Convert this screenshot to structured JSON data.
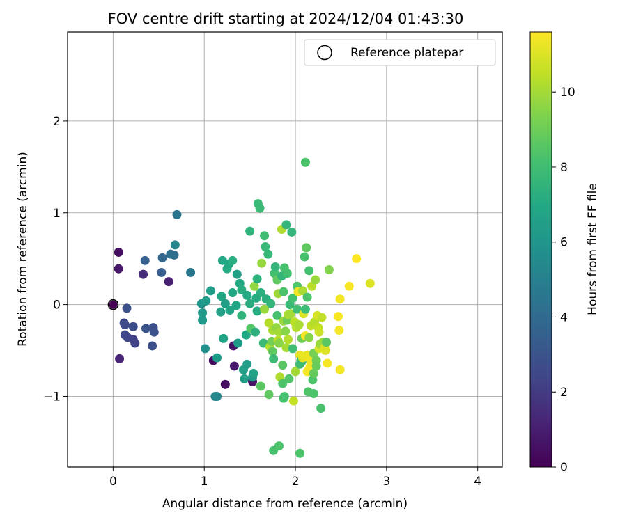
{
  "chart_data": {
    "type": "scatter",
    "title": "FOV centre drift starting at 2024/12/04 01:43:30",
    "xlabel": "Angular distance from reference (arcmin)",
    "ylabel": "Rotation from reference (arcmin)",
    "xlim": [
      -0.5,
      4.27
    ],
    "ylim": [
      -1.77,
      2.97
    ],
    "xticks": [
      "0",
      "1",
      "2",
      "3",
      "4"
    ],
    "yticks": [
      "−1",
      "0",
      "1",
      "2"
    ],
    "grid": true,
    "legend": {
      "label": "Reference platepar",
      "position": "top-right"
    },
    "reference_point": {
      "x": 0,
      "y": 0
    },
    "colorbar": {
      "label": "Hours from first FF file",
      "range": [
        0,
        11.6
      ],
      "ticks": [
        "0",
        "2",
        "4",
        "6",
        "8",
        "10"
      ],
      "colormap": "viridis"
    },
    "points": [
      {
        "x": 0.06,
        "y": 0.57,
        "h": 0.4
      },
      {
        "x": 0.06,
        "y": 0.39,
        "h": 0.7
      },
      {
        "x": 0.07,
        "y": -0.59,
        "h": 1.2
      },
      {
        "x": 0.12,
        "y": -0.2,
        "h": 2.6
      },
      {
        "x": 0.13,
        "y": -0.22,
        "h": 2.6
      },
      {
        "x": 0.15,
        "y": -0.04,
        "h": 2.9
      },
      {
        "x": 0.13,
        "y": -0.33,
        "h": 2.5
      },
      {
        "x": 0.16,
        "y": -0.36,
        "h": 2.4
      },
      {
        "x": 0.22,
        "y": -0.38,
        "h": 2.3
      },
      {
        "x": 0.22,
        "y": -0.24,
        "h": 2.7
      },
      {
        "x": 0.24,
        "y": -0.42,
        "h": 2.3
      },
      {
        "x": 0.33,
        "y": 0.33,
        "h": 1.5
      },
      {
        "x": 0.35,
        "y": 0.48,
        "h": 3.5
      },
      {
        "x": 0.36,
        "y": -0.26,
        "h": 3.0
      },
      {
        "x": 0.44,
        "y": -0.25,
        "h": 2.8
      },
      {
        "x": 0.45,
        "y": -0.3,
        "h": 2.9
      },
      {
        "x": 0.43,
        "y": -0.45,
        "h": 2.8
      },
      {
        "x": 0.53,
        "y": 0.35,
        "h": 3.4
      },
      {
        "x": 0.54,
        "y": 0.51,
        "h": 3.8
      },
      {
        "x": 0.61,
        "y": 0.25,
        "h": 1.0
      },
      {
        "x": 0.63,
        "y": 0.55,
        "h": 4.2
      },
      {
        "x": 0.67,
        "y": 0.54,
        "h": 4.2
      },
      {
        "x": 0.68,
        "y": 0.65,
        "h": 5.3
      },
      {
        "x": 0.7,
        "y": 0.98,
        "h": 4.5
      },
      {
        "x": 0.85,
        "y": 0.35,
        "h": 4.6
      },
      {
        "x": 0.97,
        "y": 0.01,
        "h": 6.0
      },
      {
        "x": 0.98,
        "y": -0.09,
        "h": 6.2
      },
      {
        "x": 0.98,
        "y": -0.17,
        "h": 6.2
      },
      {
        "x": 1.02,
        "y": 0.04,
        "h": 6.3
      },
      {
        "x": 1.01,
        "y": -0.48,
        "h": 5.8
      },
      {
        "x": 1.07,
        "y": 0.15,
        "h": 6.4
      },
      {
        "x": 1.1,
        "y": -0.61,
        "h": 0.4
      },
      {
        "x": 1.14,
        "y": -0.58,
        "h": 6.2
      },
      {
        "x": 1.12,
        "y": -1.0,
        "h": 5.3
      },
      {
        "x": 1.14,
        "y": -1.0,
        "h": 5.3
      },
      {
        "x": 1.18,
        "y": -0.08,
        "h": 6.6
      },
      {
        "x": 1.2,
        "y": 0.48,
        "h": 6.9
      },
      {
        "x": 1.19,
        "y": 0.09,
        "h": 6.9
      },
      {
        "x": 1.21,
        "y": -0.37,
        "h": 6.7
      },
      {
        "x": 1.23,
        "y": -0.87,
        "h": 0.5
      },
      {
        "x": 1.23,
        "y": 0.01,
        "h": 6.5
      },
      {
        "x": 1.25,
        "y": 0.39,
        "h": 7.1
      },
      {
        "x": 1.27,
        "y": 0.44,
        "h": 7.0
      },
      {
        "x": 1.28,
        "y": -0.06,
        "h": 6.8
      },
      {
        "x": 1.31,
        "y": 0.13,
        "h": 6.9
      },
      {
        "x": 1.31,
        "y": 0.48,
        "h": 7.2
      },
      {
        "x": 1.32,
        "y": -0.45,
        "h": 0.6
      },
      {
        "x": 1.33,
        "y": -0.67,
        "h": 0.8
      },
      {
        "x": 1.35,
        "y": -0.01,
        "h": 6.8
      },
      {
        "x": 1.36,
        "y": 0.33,
        "h": 6.6
      },
      {
        "x": 1.37,
        "y": -0.42,
        "h": 6.3
      },
      {
        "x": 1.39,
        "y": 0.23,
        "h": 7.0
      },
      {
        "x": 1.41,
        "y": -0.12,
        "h": 7.5
      },
      {
        "x": 1.41,
        "y": 0.16,
        "h": 7.2
      },
      {
        "x": 1.43,
        "y": -0.71,
        "h": 6.5
      },
      {
        "x": 1.44,
        "y": -0.81,
        "h": 6.5
      },
      {
        "x": 1.46,
        "y": -0.33,
        "h": 6.9
      },
      {
        "x": 1.47,
        "y": -0.65,
        "h": 6.4
      },
      {
        "x": 1.47,
        "y": 0.1,
        "h": 7.0
      },
      {
        "x": 1.5,
        "y": 0.8,
        "h": 7.5
      },
      {
        "x": 1.5,
        "y": 0.01,
        "h": 7.2
      },
      {
        "x": 1.51,
        "y": -0.26,
        "h": 8.5
      },
      {
        "x": 1.53,
        "y": -0.84,
        "h": 0.6
      },
      {
        "x": 1.53,
        "y": -0.79,
        "h": 6.1
      },
      {
        "x": 1.54,
        "y": -0.75,
        "h": 6.6
      },
      {
        "x": 1.55,
        "y": 0.2,
        "h": 9.7
      },
      {
        "x": 1.56,
        "y": -0.3,
        "h": 7.3
      },
      {
        "x": 1.57,
        "y": 0.07,
        "h": 7.1
      },
      {
        "x": 1.58,
        "y": 0.28,
        "h": 7.4
      },
      {
        "x": 1.58,
        "y": -0.07,
        "h": 7.2
      },
      {
        "x": 1.59,
        "y": 1.1,
        "h": 7.8
      },
      {
        "x": 1.61,
        "y": 1.05,
        "h": 7.8
      },
      {
        "x": 1.62,
        "y": 0.13,
        "h": 7.3
      },
      {
        "x": 1.62,
        "y": -0.89,
        "h": 8.6
      },
      {
        "x": 1.63,
        "y": 0.45,
        "h": 9.8
      },
      {
        "x": 1.65,
        "y": -0.42,
        "h": 7.8
      },
      {
        "x": 1.66,
        "y": 0.75,
        "h": 8.0
      },
      {
        "x": 1.66,
        "y": -0.05,
        "h": 9.8
      },
      {
        "x": 1.67,
        "y": 0.63,
        "h": 7.8
      },
      {
        "x": 1.68,
        "y": 0.06,
        "h": 7.3
      },
      {
        "x": 1.7,
        "y": 0.55,
        "h": 7.7
      },
      {
        "x": 1.71,
        "y": -0.2,
        "h": 10.3
      },
      {
        "x": 1.71,
        "y": -0.98,
        "h": 8.7
      },
      {
        "x": 1.72,
        "y": -0.46,
        "h": 10.2
      },
      {
        "x": 1.73,
        "y": 0.01,
        "h": 7.6
      },
      {
        "x": 1.74,
        "y": -0.4,
        "h": 9.1
      },
      {
        "x": 1.75,
        "y": -0.51,
        "h": 8.7
      },
      {
        "x": 1.75,
        "y": -0.28,
        "h": 10.1
      },
      {
        "x": 1.76,
        "y": -0.59,
        "h": 7.9
      },
      {
        "x": 1.76,
        "y": -1.59,
        "h": 8.2
      },
      {
        "x": 1.77,
        "y": 0.34,
        "h": 8.1
      },
      {
        "x": 1.78,
        "y": 0.41,
        "h": 7.6
      },
      {
        "x": 1.79,
        "y": -0.25,
        "h": 9.7
      },
      {
        "x": 1.8,
        "y": -0.12,
        "h": 8.2
      },
      {
        "x": 1.8,
        "y": 0.27,
        "h": 8.7
      },
      {
        "x": 1.81,
        "y": -0.39,
        "h": 10.4
      },
      {
        "x": 1.81,
        "y": 0.12,
        "h": 9.9
      },
      {
        "x": 1.82,
        "y": -0.3,
        "h": 10.0
      },
      {
        "x": 1.82,
        "y": -0.42,
        "h": 9.5
      },
      {
        "x": 1.82,
        "y": -1.54,
        "h": 8.3
      },
      {
        "x": 1.83,
        "y": -0.79,
        "h": 10.2
      },
      {
        "x": 1.85,
        "y": 0.82,
        "h": 10.2
      },
      {
        "x": 1.85,
        "y": 0.31,
        "h": 7.6
      },
      {
        "x": 1.86,
        "y": -0.66,
        "h": 8.6
      },
      {
        "x": 1.86,
        "y": -0.86,
        "h": 8.3
      },
      {
        "x": 1.87,
        "y": 0.14,
        "h": 8.3
      },
      {
        "x": 1.87,
        "y": -0.18,
        "h": 9.8
      },
      {
        "x": 1.87,
        "y": -1.02,
        "h": 8.2
      },
      {
        "x": 1.88,
        "y": -1.0,
        "h": 8.2
      },
      {
        "x": 1.88,
        "y": 0.4,
        "h": 8.2
      },
      {
        "x": 1.89,
        "y": -0.29,
        "h": 9.5
      },
      {
        "x": 1.9,
        "y": -0.47,
        "h": 10.0
      },
      {
        "x": 1.9,
        "y": 0.87,
        "h": 7.6
      },
      {
        "x": 1.91,
        "y": -0.17,
        "h": 9.0
      },
      {
        "x": 1.91,
        "y": 0.34,
        "h": 8.1
      },
      {
        "x": 1.92,
        "y": -0.38,
        "h": 10.3
      },
      {
        "x": 1.92,
        "y": -0.11,
        "h": 10.1
      },
      {
        "x": 1.93,
        "y": -0.81,
        "h": 8.4
      },
      {
        "x": 1.94,
        "y": -0.0,
        "h": 7.8
      },
      {
        "x": 1.95,
        "y": -0.1,
        "h": 10.0
      },
      {
        "x": 1.96,
        "y": 0.79,
        "h": 7.6
      },
      {
        "x": 1.97,
        "y": 0.07,
        "h": 8.1
      },
      {
        "x": 1.97,
        "y": -0.48,
        "h": 8.0
      },
      {
        "x": 1.98,
        "y": -1.05,
        "h": 10.6
      },
      {
        "x": 1.99,
        "y": -0.19,
        "h": 10.4
      },
      {
        "x": 2.0,
        "y": -0.73,
        "h": 10.0
      },
      {
        "x": 2.01,
        "y": -0.25,
        "h": 10.3
      },
      {
        "x": 2.02,
        "y": -0.05,
        "h": 8.0
      },
      {
        "x": 2.02,
        "y": 0.2,
        "h": 8.4
      },
      {
        "x": 2.03,
        "y": 0.14,
        "h": 11.4
      },
      {
        "x": 2.04,
        "y": -0.22,
        "h": 10.1
      },
      {
        "x": 2.05,
        "y": -0.55,
        "h": 11.2
      },
      {
        "x": 2.05,
        "y": -0.65,
        "h": 8.0
      },
      {
        "x": 2.05,
        "y": -1.62,
        "h": 8.3
      },
      {
        "x": 2.06,
        "y": -0.61,
        "h": 7.4
      },
      {
        "x": 2.07,
        "y": -0.37,
        "h": 9.0
      },
      {
        "x": 2.07,
        "y": -0.62,
        "h": 7.9
      },
      {
        "x": 2.08,
        "y": -0.58,
        "h": 11.2
      },
      {
        "x": 2.08,
        "y": 0.15,
        "h": 10.1
      },
      {
        "x": 2.09,
        "y": -0.1,
        "h": 11.0
      },
      {
        "x": 2.1,
        "y": 0.52,
        "h": 8.2
      },
      {
        "x": 2.11,
        "y": -0.05,
        "h": 7.9
      },
      {
        "x": 2.11,
        "y": -0.34,
        "h": 11.5
      },
      {
        "x": 2.11,
        "y": 1.55,
        "h": 8.3
      },
      {
        "x": 2.12,
        "y": 0.62,
        "h": 8.7
      },
      {
        "x": 2.13,
        "y": -0.73,
        "h": 11.4
      },
      {
        "x": 2.13,
        "y": -0.55,
        "h": 11.2
      },
      {
        "x": 2.13,
        "y": 0.08,
        "h": 8.3
      },
      {
        "x": 2.14,
        "y": -0.95,
        "h": 8.4
      },
      {
        "x": 2.15,
        "y": -0.36,
        "h": 9.5
      },
      {
        "x": 2.15,
        "y": -0.58,
        "h": 11.3
      },
      {
        "x": 2.15,
        "y": 0.37,
        "h": 8.1
      },
      {
        "x": 2.16,
        "y": -0.68,
        "h": 11.5
      },
      {
        "x": 2.17,
        "y": -0.63,
        "h": 11.3
      },
      {
        "x": 2.17,
        "y": -0.23,
        "h": 10.5
      },
      {
        "x": 2.18,
        "y": 0.2,
        "h": 10.4
      },
      {
        "x": 2.19,
        "y": -0.82,
        "h": 8.3
      },
      {
        "x": 2.2,
        "y": -0.75,
        "h": 8.8
      },
      {
        "x": 2.2,
        "y": -0.97,
        "h": 8.3
      },
      {
        "x": 2.2,
        "y": -0.53,
        "h": 9.2
      },
      {
        "x": 2.21,
        "y": -0.19,
        "h": 10.3
      },
      {
        "x": 2.22,
        "y": 0.27,
        "h": 9.8
      },
      {
        "x": 2.23,
        "y": -0.61,
        "h": 9.0
      },
      {
        "x": 2.23,
        "y": -0.67,
        "h": 8.9
      },
      {
        "x": 2.24,
        "y": -0.12,
        "h": 10.9
      },
      {
        "x": 2.25,
        "y": -0.25,
        "h": 10.5
      },
      {
        "x": 2.26,
        "y": -0.48,
        "h": 10.9
      },
      {
        "x": 2.26,
        "y": -0.3,
        "h": 10.7
      },
      {
        "x": 2.27,
        "y": -0.43,
        "h": 9.9
      },
      {
        "x": 2.28,
        "y": -1.13,
        "h": 8.2
      },
      {
        "x": 2.29,
        "y": -0.14,
        "h": 10.5
      },
      {
        "x": 2.3,
        "y": -0.41,
        "h": 9.8
      },
      {
        "x": 2.32,
        "y": -0.47,
        "h": 10.9
      },
      {
        "x": 2.33,
        "y": -0.5,
        "h": 11.0
      },
      {
        "x": 2.34,
        "y": -0.41,
        "h": 8.6
      },
      {
        "x": 2.35,
        "y": -0.64,
        "h": 11.5
      },
      {
        "x": 2.37,
        "y": 0.38,
        "h": 9.4
      },
      {
        "x": 2.47,
        "y": -0.13,
        "h": 11.5
      },
      {
        "x": 2.48,
        "y": -0.28,
        "h": 11.4
      },
      {
        "x": 2.49,
        "y": 0.06,
        "h": 11.4
      },
      {
        "x": 2.49,
        "y": -0.71,
        "h": 11.4
      },
      {
        "x": 2.59,
        "y": 0.2,
        "h": 11.5
      },
      {
        "x": 2.67,
        "y": 0.5,
        "h": 11.6
      },
      {
        "x": 2.82,
        "y": 0.23,
        "h": 11.0
      }
    ]
  }
}
